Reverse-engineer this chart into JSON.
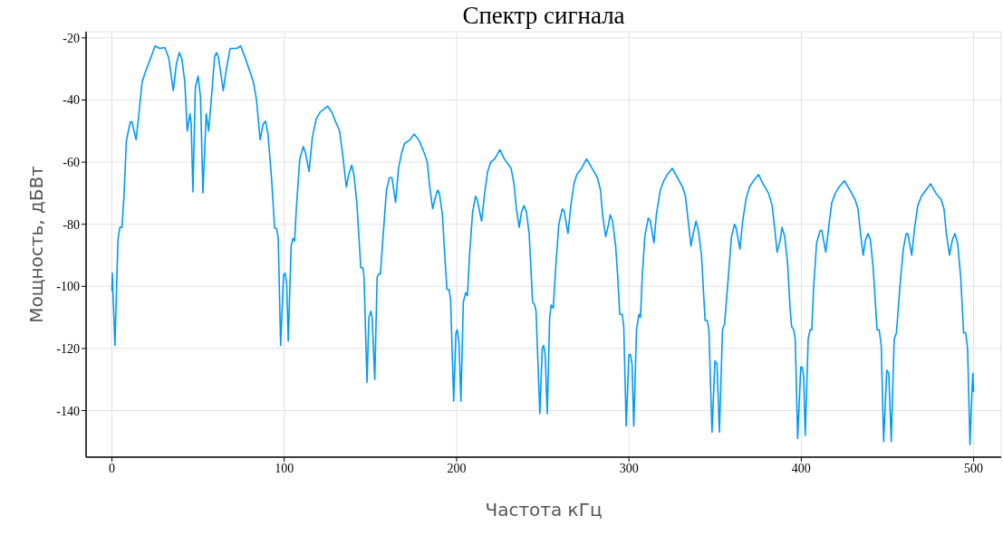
{
  "chart_data": {
    "type": "line",
    "title": "Спектр сигнала",
    "xlabel": "Частота кГц",
    "ylabel": "Мощность, дБВт",
    "xlim": [
      -15,
      516
    ],
    "ylim": [
      -155,
      -18
    ],
    "xticks": [
      0,
      100,
      200,
      300,
      400,
      500
    ],
    "yticks": [
      -140,
      -120,
      -100,
      -80,
      -60,
      -40,
      -20
    ],
    "grid": true,
    "marker": "none",
    "line_style": "solid",
    "series": [
      {
        "color": "#009af9",
        "x": [
          0,
          0.2,
          1.75,
          3.5,
          4.6,
          5.8,
          7,
          8.4,
          10.7,
          11.6,
          14,
          15.4,
          17.5,
          19.8,
          22.5,
          25,
          27.7,
          30.7,
          33,
          35.6,
          37.4,
          39.1,
          40.5,
          42.3,
          43.7,
          45.3,
          46,
          47,
          48.4,
          50,
          51.4,
          52.8,
          54.7,
          56.1,
          57.5,
          59.6,
          60.7,
          61.9,
          64.6,
          66.3,
          68.6,
          70.7,
          72.5,
          74.7,
          77.7,
          82.1,
          83.9,
          86,
          87.7,
          89.1,
          90.5,
          92.6,
          94.4,
          95.6,
          96.5,
          97.9,
          99.6,
          100.5,
          101.4,
          102.3,
          104,
          105,
          106,
          107,
          109,
          111,
          112.3,
          114.4,
          116.3,
          118.6,
          120.7,
          122.8,
          125.1,
          127.7,
          129.8,
          132.1,
          134,
          136,
          137.4,
          139.1,
          140.4,
          142.1,
          144.4,
          145.6,
          146.3,
          148,
          149.1,
          150.2,
          151,
          152.5,
          153.9,
          154.9,
          155.8,
          157.2,
          159.3,
          161,
          162.5,
          164.6,
          166.3,
          168.1,
          169.8,
          172.5,
          175.4,
          178.2,
          181.2,
          183,
          184.4,
          186.1,
          187.4,
          189,
          190,
          191.8,
          193,
          194.4,
          195.6,
          196.5,
          198.3,
          199.6,
          200.4,
          201.4,
          202.5,
          203.9,
          205.3,
          206.3,
          207.5,
          209.3,
          211,
          211.9,
          214.5,
          216.3,
          218,
          219.8,
          222.1,
          225.1,
          227.7,
          231.6,
          233.3,
          234.7,
          236.3,
          237.7,
          239.1,
          240.5,
          242.1,
          244.1,
          245.3,
          246.1,
          248.3,
          249.7,
          250.5,
          251.4,
          252.6,
          254,
          254.9,
          256.1,
          257.5,
          259.3,
          261.4,
          262.5,
          264.6,
          266.3,
          268.1,
          269.8,
          272.5,
          275.4,
          278.6,
          281.7,
          283.5,
          284.7,
          286.5,
          288.2,
          289.1,
          290.5,
          292.3,
          293.5,
          294.7,
          296.1,
          297,
          298.4,
          300,
          300.9,
          301.8,
          302.8,
          304.4,
          305.8,
          306.7,
          307.7,
          309.2,
          311.2,
          312.4,
          314.5,
          315.9,
          318.2,
          320.2,
          322.3,
          325.1,
          328.1,
          331.1,
          332.8,
          334.2,
          336,
          337.3,
          338.9,
          340.3,
          342.1,
          344.2,
          345.5,
          346.4,
          348.2,
          349.9,
          351.1,
          352.5,
          354.3,
          355.5,
          357.8,
          359.5,
          361.3,
          362.1,
          364.4,
          366,
          367.9,
          370,
          372.3,
          375.2,
          377.8,
          381,
          383.1,
          384.5,
          386,
          387.8,
          388.8,
          390.4,
          392.1,
          393.5,
          394.4,
          395.6,
          396.5,
          397.9,
          399.7,
          400.5,
          401.4,
          402.3,
          404,
          405.1,
          406.1,
          407.2,
          408.9,
          411,
          411.9,
          414.2,
          415.9,
          417.7,
          419.8,
          421.9,
          425,
          428.2,
          431.2,
          432.9,
          434.2,
          435.9,
          437.3,
          438.7,
          440.1,
          441.7,
          444,
          445.2,
          446.4,
          447.8,
          449.6,
          450.8,
          452.2,
          453.9,
          455.2,
          457.4,
          459.2,
          460.9,
          461.8,
          464.1,
          465.8,
          467.6,
          469.7,
          472.3,
          475.1,
          478.1,
          481.1,
          482.8,
          484.2,
          486,
          487.7,
          489.1,
          490.7,
          492.5,
          494.2,
          495.4,
          496.5,
          497.9,
          499.1,
          499.6,
          500
        ],
        "values": [
          -101.6,
          -95.8,
          -119,
          -85,
          -81,
          -81,
          -71,
          -53,
          -47,
          -47,
          -52.8,
          -45.9,
          -34.2,
          -30.4,
          -26.5,
          -22.6,
          -23.4,
          -23.1,
          -26.5,
          -37,
          -28.4,
          -24.7,
          -26.5,
          -34.2,
          -50,
          -44.4,
          -47.8,
          -69.6,
          -36,
          -32.3,
          -39,
          -69.9,
          -44.4,
          -50,
          -41,
          -26,
          -24.7,
          -26.5,
          -37,
          -30.4,
          -23.4,
          -23.4,
          -23.4,
          -22.6,
          -27,
          -34.2,
          -40,
          -52.8,
          -47.8,
          -46.8,
          -50.7,
          -65,
          -81.2,
          -81.5,
          -84.6,
          -119,
          -96.3,
          -95.8,
          -99,
          -117.6,
          -87,
          -84.6,
          -85.4,
          -75,
          -59,
          -55,
          -57,
          -63,
          -52,
          -46,
          -44,
          -43,
          -42,
          -44,
          -47,
          -50,
          -58,
          -68,
          -64,
          -61,
          -64,
          -73,
          -94,
          -94,
          -97,
          -131,
          -110,
          -108,
          -110,
          -130,
          -97,
          -96,
          -96,
          -85,
          -69,
          -65,
          -65,
          -73,
          -62,
          -57,
          -54,
          -53,
          -51,
          -53,
          -57,
          -60,
          -68,
          -75,
          -72,
          -69,
          -70,
          -77,
          -89,
          -101,
          -101,
          -104,
          -137,
          -115,
          -114,
          -118,
          -137,
          -105,
          -102,
          -103,
          -90,
          -76,
          -71,
          -72,
          -79,
          -70,
          -63,
          -60,
          -59,
          -56,
          -59,
          -62,
          -67,
          -75,
          -81,
          -76,
          -74,
          -76,
          -83,
          -105,
          -106,
          -108,
          -141,
          -120,
          -119,
          -122,
          -141,
          -110,
          -106,
          -107,
          -94,
          -80,
          -75,
          -76,
          -83,
          -74,
          -67,
          -64,
          -62,
          -59,
          -62,
          -65,
          -69,
          -77,
          -84,
          -80,
          -77,
          -79,
          -87,
          -97,
          -109,
          -109,
          -113,
          -145,
          -122,
          -122,
          -125,
          -145,
          -114,
          -109,
          -110,
          -97,
          -84,
          -78,
          -79,
          -86,
          -77,
          -69,
          -66,
          -64,
          -62,
          -65,
          -68,
          -71,
          -78,
          -87,
          -83,
          -79,
          -82,
          -90,
          -111,
          -111,
          -114,
          -147,
          -124,
          -125,
          -147,
          -114,
          -112,
          -96,
          -84,
          -80,
          -81,
          -88,
          -79,
          -72,
          -68,
          -66,
          -64,
          -67,
          -70,
          -74,
          -81,
          -89,
          -85,
          -81,
          -84,
          -93,
          -107,
          -113,
          -114,
          -117,
          -149,
          -126,
          -126,
          -129,
          -148,
          -117,
          -114,
          -114,
          -100,
          -86,
          -82,
          -82,
          -89,
          -81,
          -73,
          -70,
          -68,
          -66,
          -69,
          -72,
          -75,
          -82,
          -90,
          -85,
          -83,
          -85,
          -94,
          -114,
          -114,
          -119,
          -150,
          -127,
          -128,
          -150,
          -117,
          -115,
          -99,
          -88,
          -83,
          -83,
          -90,
          -81,
          -74,
          -71,
          -69,
          -67,
          -70,
          -72,
          -75,
          -83,
          -90,
          -85,
          -83,
          -86,
          -97,
          -115,
          -115,
          -120,
          -151,
          -133,
          -128,
          -134
        ]
      }
    ]
  }
}
